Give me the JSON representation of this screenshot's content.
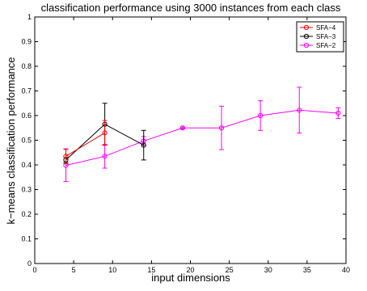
{
  "chart_data": {
    "type": "line",
    "title": "classification performance using 3000 instances from each class",
    "xlabel": "input dimensions",
    "ylabel": "k−means classification performance",
    "xlim": [
      0,
      40
    ],
    "ylim": [
      0,
      1
    ],
    "xticks": [
      0,
      5,
      10,
      15,
      20,
      25,
      30,
      35,
      40
    ],
    "yticks": [
      0,
      0.1,
      0.2,
      0.3,
      0.4,
      0.5,
      0.6,
      0.7,
      0.8,
      0.9,
      1
    ],
    "grid": false,
    "legend_position": "top-right",
    "series": [
      {
        "name": "SFA−4",
        "color": "#ff0000",
        "x": [
          4,
          9
        ],
        "y": [
          0.435,
          0.53
        ],
        "err": [
          0.03,
          0.05
        ]
      },
      {
        "name": "SFA−3",
        "color": "#000000",
        "x": [
          4,
          9,
          14
        ],
        "y": [
          0.42,
          0.565,
          0.48
        ],
        "err": [
          0.01,
          0.085,
          0.06
        ]
      },
      {
        "name": "SFA−2",
        "color": "#ff00ff",
        "x": [
          4,
          9,
          14,
          19,
          24,
          29,
          34,
          39
        ],
        "y": [
          0.398,
          0.435,
          0.497,
          0.55,
          0.55,
          0.6,
          0.622,
          0.61
        ],
        "err": [
          0.065,
          0.048,
          0.018,
          0.004,
          0.088,
          0.06,
          0.093,
          0.022
        ]
      }
    ]
  }
}
